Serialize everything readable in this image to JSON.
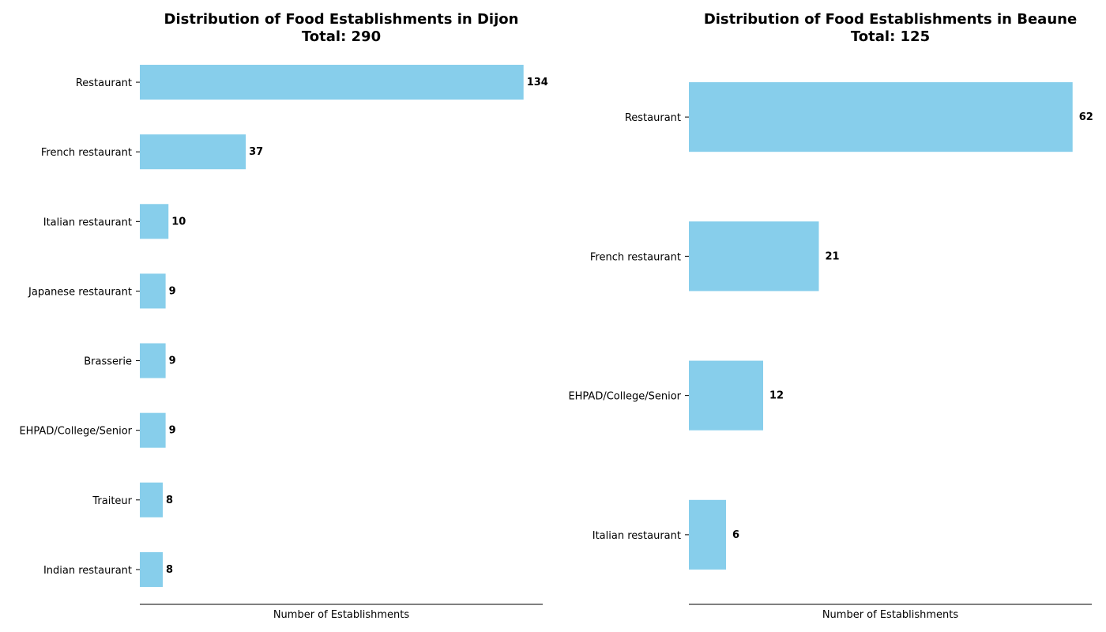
{
  "chart_data": [
    {
      "type": "bar",
      "orientation": "horizontal",
      "title": "Distribution of Food Establishments in Dijon",
      "subtitle": "Total: 290",
      "xlabel": "Number of Establishments",
      "ylabel": "",
      "categories": [
        "Restaurant",
        "French restaurant",
        "Italian restaurant",
        "Japanese restaurant",
        "Brasserie",
        "EHPAD/College/Senior",
        "Traiteur",
        "Indian restaurant"
      ],
      "values": [
        134,
        37,
        10,
        9,
        9,
        9,
        8,
        8
      ],
      "xlim": [
        0,
        140.7
      ],
      "bar_color": "#87CEEB",
      "data_labels": true,
      "grid": false,
      "x_ticks_visible": false
    },
    {
      "type": "bar",
      "orientation": "horizontal",
      "title": "Distribution of Food Establishments in Beaune",
      "subtitle": "Total: 125",
      "xlabel": "Number of Establishments",
      "ylabel": "",
      "categories": [
        "Restaurant",
        "French restaurant",
        "EHPAD/College/Senior",
        "Italian restaurant"
      ],
      "values": [
        62,
        21,
        12,
        6
      ],
      "xlim": [
        0,
        65.1
      ],
      "bar_color": "#87CEEB",
      "data_labels": true,
      "grid": false,
      "x_ticks_visible": false
    }
  ]
}
